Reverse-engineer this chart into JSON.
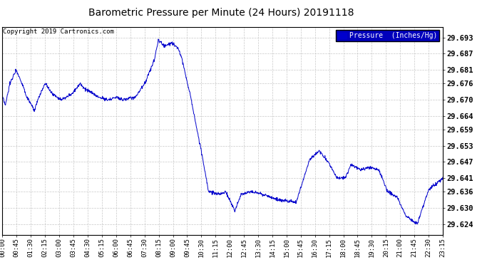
{
  "title": "Barometric Pressure per Minute (24 Hours) 20191118",
  "copyright": "Copyright 2019 Cartronics.com",
  "legend_label": "Pressure  (Inches/Hg)",
  "line_color": "#0000cc",
  "background_color": "#ffffff",
  "grid_color": "#c8c8c8",
  "yticks": [
    29.624,
    29.63,
    29.636,
    29.641,
    29.647,
    29.653,
    29.659,
    29.664,
    29.67,
    29.676,
    29.681,
    29.687,
    29.693
  ],
  "ylim": [
    29.62,
    29.697
  ],
  "xtick_labels": [
    "00:00",
    "00:45",
    "01:30",
    "02:15",
    "03:00",
    "03:45",
    "04:30",
    "05:15",
    "06:00",
    "06:45",
    "07:30",
    "08:15",
    "09:00",
    "09:45",
    "10:30",
    "11:15",
    "12:00",
    "12:45",
    "13:30",
    "14:15",
    "15:00",
    "15:45",
    "16:30",
    "17:15",
    "18:00",
    "18:45",
    "19:30",
    "20:15",
    "21:00",
    "21:45",
    "22:30",
    "23:15"
  ]
}
